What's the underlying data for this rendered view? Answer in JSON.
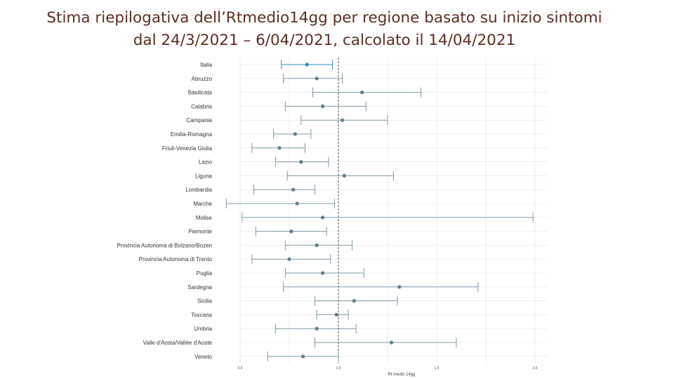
{
  "slide": {
    "title": "Stima riepilogativa dell’Rtmedio14gg per regione basato su inizio sintomi\ndal 24/3/2021 – 6/04/2021, calcolato il 14/04/2021"
  },
  "chart_data": {
    "type": "scatter",
    "subtype": "forest-plot",
    "xlabel": "Rt medio 14gg",
    "ylabel": "",
    "xlim": [
      0.5,
      2.0
    ],
    "xticks": [
      "0.5",
      "1.0",
      "1.5",
      "2.0"
    ],
    "reference_line": 1.0,
    "grid": true,
    "colors": {
      "point": "#5e7f8e",
      "line": "#7f9aa6",
      "italia_point": "#2b8cba",
      "reference": "#333333",
      "grid": "#e4e4e4"
    },
    "categories": [
      "Italia",
      "Abruzzo",
      "Basilicata",
      "Calabria",
      "Campania",
      "Emilia-Romagna",
      "Friuli-Venezia Giulia",
      "Lazio",
      "Liguria",
      "Lombardia",
      "Marche",
      "Molise",
      "Piemonte",
      "Provincia Autonoma di Bolzano/Bozen",
      "Provincia Autonoma di Trento",
      "Puglia",
      "Sardegna",
      "Sicilia",
      "Toscana",
      "Umbria",
      "Valle d'Aosta/Vallée d'Aoste",
      "Veneto"
    ],
    "estimates": [
      0.84,
      0.89,
      1.12,
      0.92,
      1.02,
      0.78,
      0.7,
      0.81,
      1.03,
      0.77,
      0.79,
      0.92,
      0.76,
      0.89,
      0.75,
      0.92,
      1.31,
      1.08,
      0.99,
      0.89,
      1.27,
      0.82
    ],
    "lower": [
      0.71,
      0.72,
      0.87,
      0.73,
      0.81,
      0.67,
      0.56,
      0.68,
      0.74,
      0.57,
      0.43,
      0.51,
      0.58,
      0.73,
      0.56,
      0.73,
      0.72,
      0.88,
      0.89,
      0.68,
      0.88,
      0.64
    ],
    "upper": [
      0.97,
      1.02,
      1.42,
      1.14,
      1.25,
      0.86,
      0.83,
      0.95,
      1.28,
      0.88,
      0.98,
      1.99,
      0.94,
      1.07,
      0.96,
      1.13,
      1.71,
      1.3,
      1.05,
      1.09,
      1.6,
      1.0
    ]
  }
}
